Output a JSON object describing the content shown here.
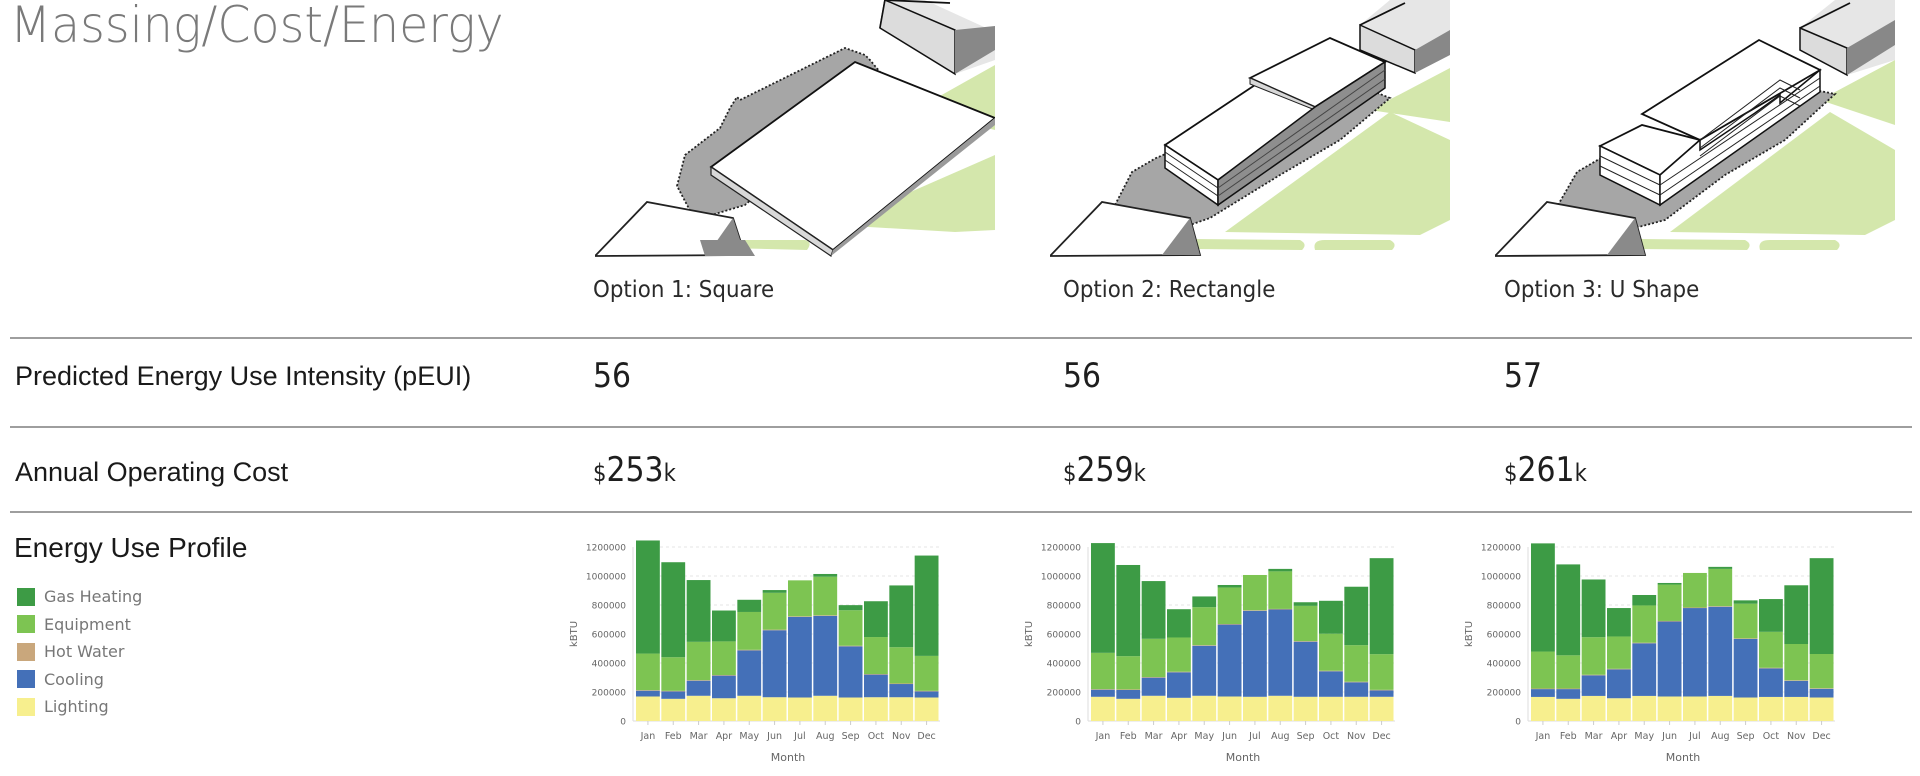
{
  "page": {
    "title": "Massing/Cost/Energy"
  },
  "metrics": {
    "peui_label": "Predicted Energy Use Intensity (pEUI)",
    "cost_label": "Annual Operating Cost",
    "profile_label": "Energy Use Profile"
  },
  "options": [
    {
      "label": "Option 1: Square",
      "peui": "56",
      "cost_currency": "$",
      "cost_value": "253",
      "cost_unit": "k"
    },
    {
      "label": "Option 2: Rectangle",
      "peui": "56",
      "cost_currency": "$",
      "cost_value": "259",
      "cost_unit": "k"
    },
    {
      "label": "Option 3: U Shape",
      "peui": "57",
      "cost_currency": "$",
      "cost_value": "261",
      "cost_unit": "k"
    }
  ],
  "legend": [
    {
      "label": "Gas Heating",
      "color": "#3d9b45"
    },
    {
      "label": "Equipment",
      "color": "#7dc452"
    },
    {
      "label": "Hot Water",
      "color": "#c9a77c"
    },
    {
      "label": "Cooling",
      "color": "#4470b8"
    },
    {
      "label": "Lighting",
      "color": "#f7ef8e"
    }
  ],
  "chart_data": [
    {
      "type": "bar",
      "stacked": true,
      "title": "Option 1: Square",
      "xlabel": "Month",
      "ylabel": "kBTU",
      "ylim": [
        0,
        1200000
      ],
      "yticks": [
        0,
        200000,
        400000,
        600000,
        800000,
        1000000,
        1200000
      ],
      "grid": true,
      "categories": [
        "Jan",
        "Feb",
        "Mar",
        "Apr",
        "May",
        "Jun",
        "Jul",
        "Aug",
        "Sep",
        "Oct",
        "Nov",
        "Dec"
      ],
      "series": [
        {
          "name": "Lighting",
          "values": [
            169000,
            153000,
            174000,
            157000,
            174000,
            164000,
            162000,
            174000,
            162000,
            164000,
            164000,
            162000
          ]
        },
        {
          "name": "Cooling",
          "values": [
            40000,
            51000,
            104000,
            156000,
            313000,
            462000,
            556000,
            551000,
            353000,
            156000,
            91000,
            42000
          ]
        },
        {
          "name": "Hot Water",
          "values": [
            4000,
            4000,
            4000,
            4000,
            4000,
            4000,
            4000,
            4000,
            4000,
            4000,
            4000,
            4000
          ]
        },
        {
          "name": "Equipment",
          "values": [
            252000,
            232000,
            264000,
            232000,
            261000,
            254000,
            248000,
            266000,
            245000,
            255000,
            250000,
            241000
          ]
        },
        {
          "name": "Gas Heating",
          "values": [
            780000,
            655000,
            426000,
            213000,
            84000,
            19000,
            0,
            19000,
            35000,
            247000,
            426000,
            692000
          ]
        }
      ],
      "totals": [
        1245000,
        1095000,
        972000,
        762000,
        836000,
        903000,
        970000,
        1014000,
        799000,
        826000,
        935000,
        1141000
      ]
    },
    {
      "type": "bar",
      "stacked": true,
      "title": "Option 2: Rectangle",
      "xlabel": "Month",
      "ylabel": "kBTU",
      "ylim": [
        0,
        1200000
      ],
      "yticks": [
        0,
        200000,
        400000,
        600000,
        800000,
        1000000,
        1200000
      ],
      "grid": true,
      "categories": [
        "Jan",
        "Feb",
        "Mar",
        "Apr",
        "May",
        "Jun",
        "Jul",
        "Aug",
        "Sep",
        "Oct",
        "Nov",
        "Dec"
      ],
      "series": [
        {
          "name": "Lighting",
          "values": [
            167000,
            153000,
            174000,
            160000,
            174000,
            169000,
            167000,
            174000,
            167000,
            167000,
            167000,
            167000
          ]
        },
        {
          "name": "Cooling",
          "values": [
            49000,
            61000,
            125000,
            176000,
            345000,
            496000,
            593000,
            595000,
            380000,
            176000,
            100000,
            44000
          ]
        },
        {
          "name": "Hot Water",
          "values": [
            4000,
            4000,
            4000,
            4000,
            4000,
            4000,
            4000,
            4000,
            4000,
            4000,
            4000,
            4000
          ]
        },
        {
          "name": "Equipment",
          "values": [
            250000,
            229000,
            264000,
            236000,
            262000,
            252000,
            243000,
            259000,
            243000,
            255000,
            252000,
            246000
          ]
        },
        {
          "name": "Gas Heating",
          "values": [
            757000,
            629000,
            398000,
            195000,
            74000,
            17000,
            0,
            17000,
            25000,
            227000,
            403000,
            662000
          ]
        }
      ],
      "totals": [
        1227000,
        1076000,
        965000,
        771000,
        859000,
        938000,
        1007000,
        1049000,
        819000,
        829000,
        926000,
        1123000
      ]
    },
    {
      "type": "bar",
      "stacked": true,
      "title": "Option 3: U Shape",
      "xlabel": "Month",
      "ylabel": "kBTU",
      "ylim": [
        0,
        1200000
      ],
      "yticks": [
        0,
        200000,
        400000,
        600000,
        800000,
        1000000,
        1200000
      ],
      "grid": true,
      "categories": [
        "Jan",
        "Feb",
        "Mar",
        "Apr",
        "May",
        "Jun",
        "Jul",
        "Aug",
        "Sep",
        "Oct",
        "Nov",
        "Dec"
      ],
      "series": [
        {
          "name": "Lighting",
          "values": [
            166000,
            153000,
            173000,
            157000,
            173000,
            169000,
            169000,
            173000,
            162000,
            166000,
            166000,
            162000
          ]
        },
        {
          "name": "Cooling",
          "values": [
            54000,
            67000,
            142000,
            199000,
            363000,
            517000,
            610000,
            615000,
            404000,
            197000,
            111000,
            60000
          ]
        },
        {
          "name": "Hot Water",
          "values": [
            4000,
            4000,
            4000,
            4000,
            4000,
            4000,
            4000,
            4000,
            4000,
            4000,
            4000,
            4000
          ]
        },
        {
          "name": "Equipment",
          "values": [
            255000,
            229000,
            259000,
            223000,
            257000,
            251000,
            238000,
            257000,
            239000,
            248000,
            250000,
            236000
          ]
        },
        {
          "name": "Gas Heating",
          "values": [
            746000,
            627000,
            398000,
            196000,
            72000,
            11000,
            0,
            14000,
            23000,
            226000,
            405000,
            661000
          ]
        }
      ],
      "totals": [
        1225000,
        1080000,
        976000,
        779000,
        869000,
        952000,
        1021000,
        1063000,
        832000,
        841000,
        936000,
        1123000
      ]
    }
  ]
}
